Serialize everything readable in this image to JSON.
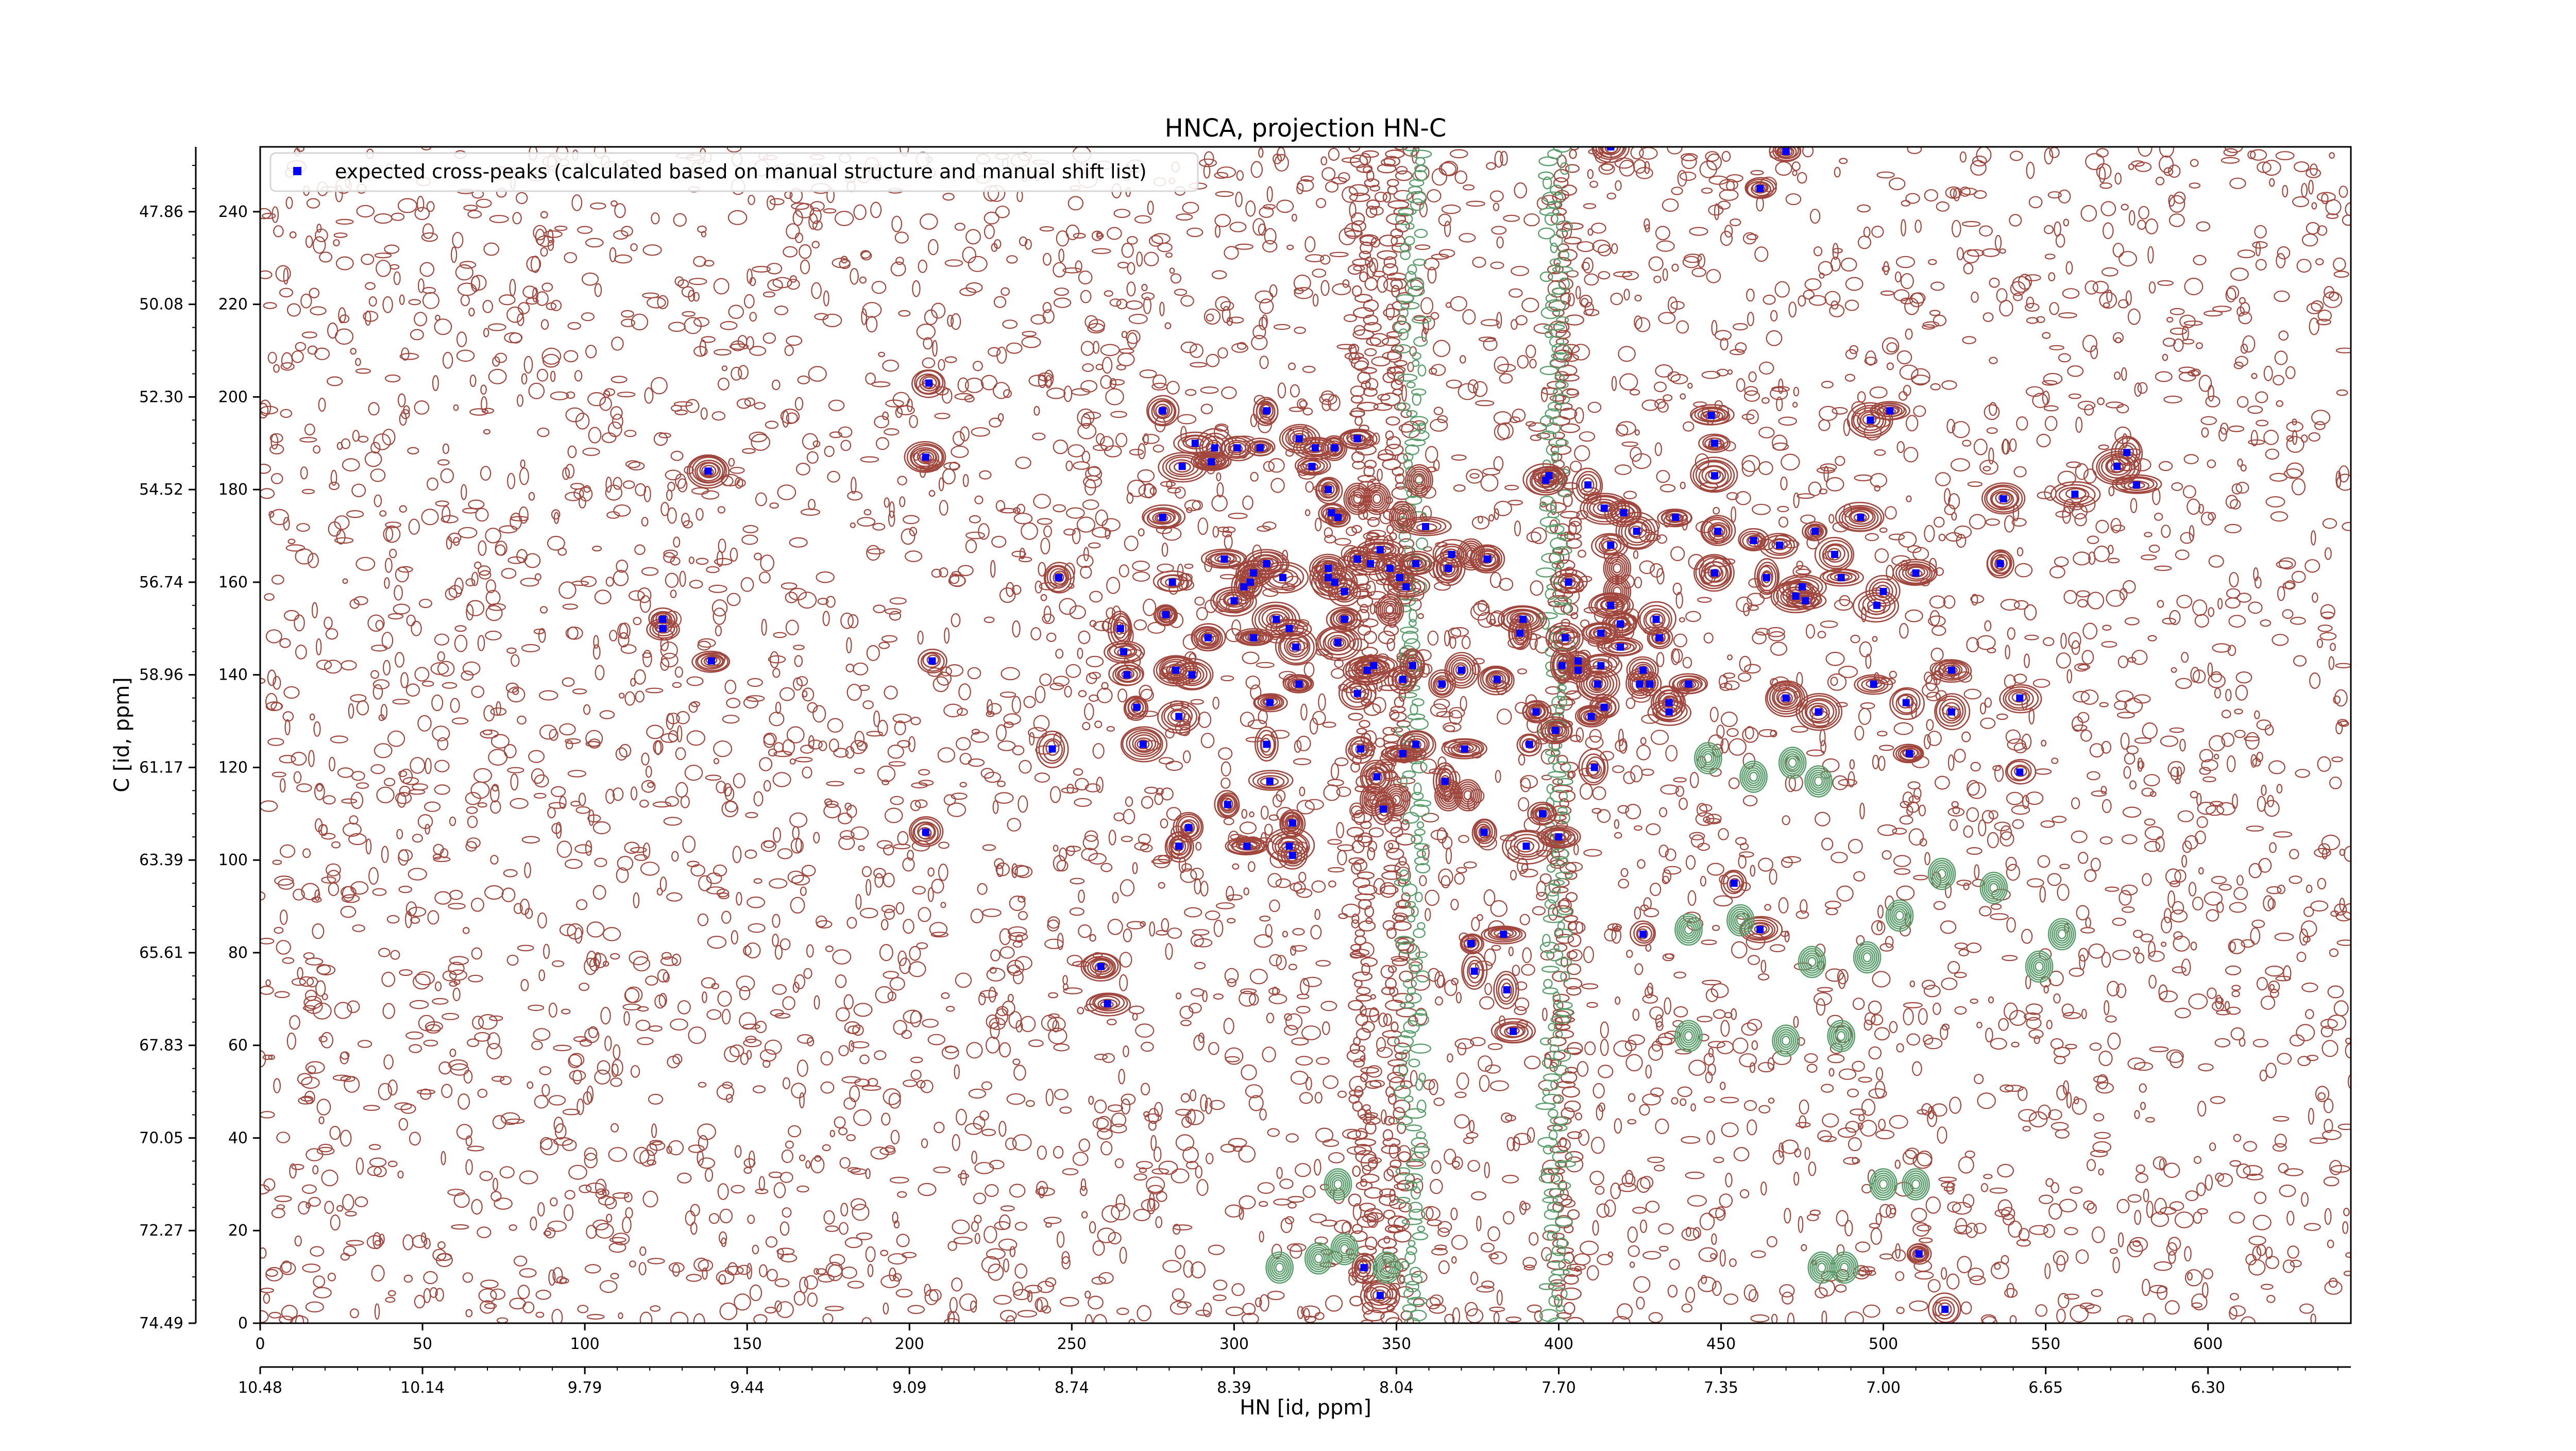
{
  "chart_data": {
    "type": "scatter",
    "title": "HNCA, projection HN-C",
    "xlabel": "HN [id, ppm]",
    "ylabel": "C [id, ppm]",
    "xlim": [
      0,
      644
    ],
    "ylim": [
      0,
      254
    ],
    "x_ticks": [
      0,
      50,
      100,
      150,
      200,
      250,
      300,
      350,
      400,
      450,
      500,
      550,
      600
    ],
    "y_ticks": [
      0,
      20,
      40,
      60,
      80,
      100,
      120,
      140,
      160,
      180,
      200,
      220,
      240
    ],
    "x_ppm_tick_labels": [
      "10.48",
      "10.14",
      "9.79",
      "9.44",
      "9.09",
      "8.74",
      "8.39",
      "8.04",
      "7.70",
      "7.35",
      "7.00",
      "6.65",
      "6.30"
    ],
    "y_ppm_tick_labels": [
      "74.49",
      "72.27",
      "70.05",
      "67.83",
      "65.61",
      "63.39",
      "61.17",
      "58.96",
      "56.74",
      "54.52",
      "52.30",
      "50.08",
      "47.86"
    ],
    "legend": {
      "position": "top-left",
      "entries": [
        "expected cross-peaks (calculated based on manual structure and manual shift list)"
      ]
    },
    "colors": {
      "positive_contour": "#a0463c",
      "negative_contour": "#5a9e6c",
      "marker": "#0000ff"
    },
    "series": [
      {
        "name": "expected cross-peaks (calculated based on manual structure and manual shift list)",
        "points": [
          [
            124,
            152
          ],
          [
            124,
            150
          ],
          [
            139,
            143
          ],
          [
            138,
            184
          ],
          [
            206,
            203
          ],
          [
            205,
            187
          ],
          [
            207,
            143
          ],
          [
            205,
            106
          ],
          [
            246,
            161
          ],
          [
            244,
            124
          ],
          [
            259,
            77
          ],
          [
            261,
            69
          ],
          [
            265,
            150
          ],
          [
            266,
            145
          ],
          [
            267,
            140
          ],
          [
            270,
            133
          ],
          [
            272,
            125
          ],
          [
            278,
            197
          ],
          [
            278,
            174
          ],
          [
            279,
            153
          ],
          [
            281,
            160
          ],
          [
            282,
            141
          ],
          [
            283,
            131
          ],
          [
            283,
            103
          ],
          [
            284,
            185
          ],
          [
            286,
            107
          ],
          [
            288,
            190
          ],
          [
            287,
            140
          ],
          [
            292,
            148
          ],
          [
            294,
            189
          ],
          [
            293,
            186
          ],
          [
            297,
            165
          ],
          [
            298,
            112
          ],
          [
            300,
            156
          ],
          [
            301,
            189
          ],
          [
            303,
            159
          ],
          [
            304,
            103
          ],
          [
            305,
            160
          ],
          [
            306,
            148
          ],
          [
            306,
            162
          ],
          [
            308,
            189
          ],
          [
            310,
            197
          ],
          [
            310,
            164
          ],
          [
            310,
            125
          ],
          [
            311,
            134
          ],
          [
            311,
            117
          ],
          [
            313,
            152
          ],
          [
            315,
            161
          ],
          [
            317,
            150
          ],
          [
            318,
            108
          ],
          [
            317,
            103
          ],
          [
            319,
            146
          ],
          [
            318,
            101
          ],
          [
            320,
            191
          ],
          [
            320,
            138
          ],
          [
            324,
            185
          ],
          [
            325,
            189
          ],
          [
            329,
            180
          ],
          [
            329,
            163
          ],
          [
            329,
            161
          ],
          [
            330,
            175
          ],
          [
            332,
            174
          ],
          [
            331,
            189
          ],
          [
            332,
            147
          ],
          [
            331,
            160
          ],
          [
            334,
            158
          ],
          [
            334,
            152
          ],
          [
            338,
            136
          ],
          [
            338,
            191
          ],
          [
            338,
            165
          ],
          [
            339,
            124
          ],
          [
            341,
            141
          ],
          [
            342,
            164
          ],
          [
            343,
            142
          ],
          [
            344,
            118
          ],
          [
            345,
            167
          ],
          [
            346,
            111
          ],
          [
            348,
            163
          ],
          [
            351,
            161
          ],
          [
            352,
            123
          ],
          [
            352,
            139
          ],
          [
            353,
            159
          ],
          [
            355,
            142
          ],
          [
            356,
            164
          ],
          [
            356,
            125
          ],
          [
            359,
            172
          ],
          [
            364,
            138
          ],
          [
            365,
            117
          ],
          [
            366,
            163
          ],
          [
            367,
            166
          ],
          [
            370,
            141
          ],
          [
            371,
            124
          ],
          [
            373,
            82
          ],
          [
            374,
            76
          ],
          [
            377,
            106
          ],
          [
            378,
            165
          ],
          [
            381,
            139
          ],
          [
            383,
            84
          ],
          [
            384,
            72
          ],
          [
            386,
            63
          ],
          [
            388,
            149
          ],
          [
            389,
            152
          ],
          [
            390,
            103
          ],
          [
            391,
            125
          ],
          [
            393,
            132
          ],
          [
            395,
            110
          ],
          [
            396,
            182
          ],
          [
            397,
            183
          ],
          [
            399,
            128
          ],
          [
            400,
            105
          ],
          [
            401,
            142
          ],
          [
            402,
            148
          ],
          [
            403,
            160
          ],
          [
            406,
            143
          ],
          [
            406,
            141
          ],
          [
            409,
            181
          ],
          [
            410,
            131
          ],
          [
            411,
            120
          ],
          [
            413,
            142
          ],
          [
            413,
            149
          ],
          [
            412,
            138
          ],
          [
            414,
            133
          ],
          [
            414,
            176
          ],
          [
            416,
            168
          ],
          [
            416,
            155
          ],
          [
            419,
            151
          ],
          [
            419,
            146
          ],
          [
            420,
            175
          ],
          [
            424,
            171
          ],
          [
            425,
            138
          ],
          [
            426,
            141
          ],
          [
            426,
            84
          ],
          [
            428,
            138
          ],
          [
            430,
            152
          ],
          [
            431,
            148
          ],
          [
            434,
            132
          ],
          [
            434,
            134
          ],
          [
            436,
            174
          ],
          [
            440,
            138
          ],
          [
            448,
            162
          ],
          [
            448,
            183
          ],
          [
            447,
            196
          ],
          [
            448,
            190
          ],
          [
            449,
            171
          ],
          [
            454,
            95
          ],
          [
            460,
            169
          ],
          [
            462,
            85
          ],
          [
            464,
            161
          ],
          [
            468,
            168
          ],
          [
            470,
            135
          ],
          [
            473,
            157
          ],
          [
            475,
            159
          ],
          [
            476,
            156
          ],
          [
            479,
            171
          ],
          [
            480,
            132
          ],
          [
            485,
            166
          ],
          [
            487,
            161
          ],
          [
            493,
            174
          ],
          [
            496,
            195
          ],
          [
            497,
            138
          ],
          [
            498,
            155
          ],
          [
            500,
            158
          ],
          [
            502,
            197
          ],
          [
            507,
            134
          ],
          [
            508,
            123
          ],
          [
            510,
            162
          ],
          [
            521,
            132
          ],
          [
            521,
            141
          ],
          [
            536,
            164
          ],
          [
            537,
            178
          ],
          [
            542,
            119
          ],
          [
            542,
            135
          ],
          [
            559,
            179
          ],
          [
            572,
            185
          ],
          [
            575,
            188
          ],
          [
            578,
            181
          ],
          [
            345,
            6
          ],
          [
            416,
            254
          ],
          [
            462,
            245
          ],
          [
            470,
            253
          ],
          [
            340,
            12
          ],
          [
            511,
            15
          ],
          [
            519,
            3
          ]
        ]
      }
    ]
  }
}
